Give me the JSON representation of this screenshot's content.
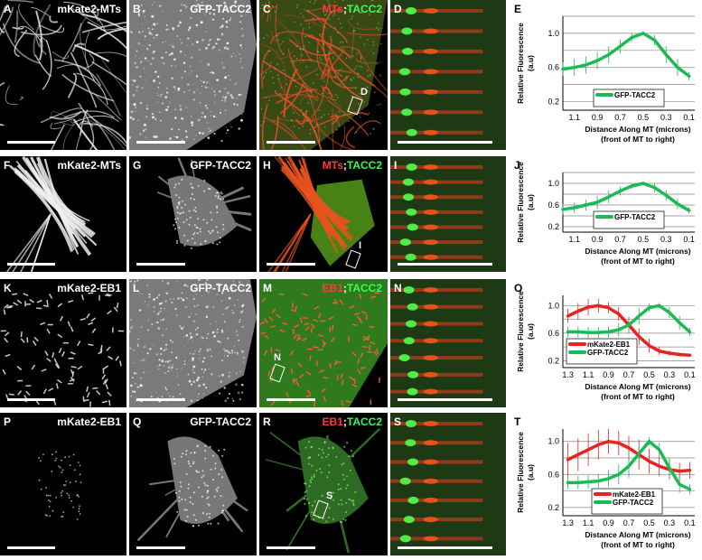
{
  "rows": [
    {
      "panels": [
        {
          "letter": "A",
          "title": [
            {
              "t": "mKate2-MTs",
              "c": "w"
            }
          ],
          "kind": "mts"
        },
        {
          "letter": "B",
          "title": [
            {
              "t": "GFP-TACC2",
              "c": "w"
            }
          ],
          "kind": "diffuse"
        },
        {
          "letter": "C",
          "title": [
            {
              "t": "MTs",
              "c": "r"
            },
            {
              "t": ";",
              "c": "w"
            },
            {
              "t": "TACC2",
              "c": "g"
            }
          ],
          "kind": "merge-mts",
          "box": "D"
        },
        {
          "letter": "D",
          "title": [],
          "kind": "kymo"
        }
      ],
      "chart": "E"
    },
    {
      "panels": [
        {
          "letter": "F",
          "title": [
            {
              "t": "mKate2-MTs",
              "c": "w"
            }
          ],
          "kind": "bundles"
        },
        {
          "letter": "G",
          "title": [
            {
              "t": "GFP-TACC2",
              "c": "w"
            }
          ],
          "kind": "neuron"
        },
        {
          "letter": "H",
          "title": [
            {
              "t": "MTs",
              "c": "r"
            },
            {
              "t": ";",
              "c": "w"
            },
            {
              "t": "TACC2",
              "c": "g"
            }
          ],
          "kind": "merge-bundles",
          "box": "I"
        },
        {
          "letter": "I",
          "title": [],
          "kind": "kymo"
        }
      ],
      "chart": "J"
    },
    {
      "panels": [
        {
          "letter": "K",
          "title": [
            {
              "t": "mKate2-EB1",
              "c": "w"
            }
          ],
          "kind": "comets"
        },
        {
          "letter": "L",
          "title": [
            {
              "t": "GFP-TACC2",
              "c": "w"
            }
          ],
          "kind": "diffuse"
        },
        {
          "letter": "M",
          "title": [
            {
              "t": "EB1",
              "c": "r"
            },
            {
              "t": ";",
              "c": "w"
            },
            {
              "t": "TACC2",
              "c": "g"
            }
          ],
          "kind": "merge-comets",
          "box": "N"
        },
        {
          "letter": "N",
          "title": [],
          "kind": "kymo"
        }
      ],
      "chart": "O"
    },
    {
      "panels": [
        {
          "letter": "P",
          "title": [
            {
              "t": "mKate2-EB1",
              "c": "w"
            }
          ],
          "kind": "sparse"
        },
        {
          "letter": "Q",
          "title": [
            {
              "t": "GFP-TACC2",
              "c": "w"
            }
          ],
          "kind": "neuron"
        },
        {
          "letter": "R",
          "title": [
            {
              "t": "EB1",
              "c": "r"
            },
            {
              "t": ";",
              "c": "w"
            },
            {
              "t": "TACC2",
              "c": "g"
            }
          ],
          "kind": "merge-neuron",
          "box": "S"
        },
        {
          "letter": "S",
          "title": [],
          "kind": "kymo"
        }
      ],
      "chart": "T"
    }
  ],
  "chart_data": [
    {
      "letter": "E",
      "type": "line",
      "ylabel": "Relative Fluorescence\n(a.u)",
      "xlabel": "Distance Along MT (microns)\n(front of MT to right)",
      "xticks": [
        1.1,
        0.9,
        0.7,
        0.5,
        0.3,
        0.1
      ],
      "yticks": [
        0.2,
        0.6,
        1.0
      ],
      "xlim": [
        1.2,
        0.05
      ],
      "ylim": [
        0.1,
        1.2
      ],
      "legend": "bottom-center",
      "series": [
        {
          "name": "GFP-TACC2",
          "color": "#1db954",
          "x": [
            1.2,
            1.1,
            1.0,
            0.9,
            0.8,
            0.7,
            0.6,
            0.5,
            0.4,
            0.3,
            0.2,
            0.1
          ],
          "y": [
            0.58,
            0.6,
            0.63,
            0.68,
            0.75,
            0.85,
            0.95,
            1.0,
            0.92,
            0.75,
            0.6,
            0.5
          ],
          "err": [
            0.08,
            0.1,
            0.1,
            0.1,
            0.1,
            0.08,
            0.05,
            0.02,
            0.06,
            0.1,
            0.1,
            0.05
          ]
        }
      ]
    },
    {
      "letter": "J",
      "type": "line",
      "ylabel": "Relative Fluorescence\n(a.u)",
      "xlabel": "Distance Along MT (microns)\n(front of MT to right)",
      "xticks": [
        1.1,
        0.9,
        0.7,
        0.5,
        0.3,
        0.1
      ],
      "yticks": [
        0.2,
        0.6,
        1.0
      ],
      "xlim": [
        1.2,
        0.05
      ],
      "ylim": [
        0.1,
        1.2
      ],
      "legend": "bottom-center",
      "series": [
        {
          "name": "GFP-TACC2",
          "color": "#1db954",
          "x": [
            1.2,
            1.1,
            1.0,
            0.9,
            0.8,
            0.7,
            0.6,
            0.5,
            0.4,
            0.3,
            0.2,
            0.1
          ],
          "y": [
            0.52,
            0.55,
            0.6,
            0.65,
            0.75,
            0.86,
            0.95,
            1.0,
            0.92,
            0.78,
            0.62,
            0.5
          ],
          "err": [
            0.1,
            0.1,
            0.1,
            0.12,
            0.12,
            0.08,
            0.05,
            0.02,
            0.08,
            0.1,
            0.1,
            0.06
          ]
        }
      ]
    },
    {
      "letter": "O",
      "type": "line",
      "ylabel": "Relative Fluorescence\n(a.u)",
      "xlabel": "Distance Along MT (microns)\n(front of MT to right)",
      "xticks": [
        1.3,
        1.1,
        0.9,
        0.7,
        0.5,
        0.3,
        0.1
      ],
      "yticks": [
        0.2,
        0.6,
        1.0
      ],
      "xlim": [
        1.35,
        0.05
      ],
      "ylim": [
        0.1,
        1.15
      ],
      "legend": "bottom-left",
      "series": [
        {
          "name": "mKate2-EB1",
          "color": "#e8231f",
          "x": [
            1.3,
            1.2,
            1.1,
            1.0,
            0.9,
            0.8,
            0.7,
            0.6,
            0.5,
            0.4,
            0.3,
            0.2,
            0.1
          ],
          "y": [
            0.85,
            0.92,
            0.98,
            1.0,
            0.97,
            0.88,
            0.72,
            0.55,
            0.42,
            0.34,
            0.31,
            0.29,
            0.28
          ],
          "err": [
            0.1,
            0.12,
            0.12,
            0.1,
            0.08,
            0.1,
            0.12,
            0.12,
            0.1,
            0.06,
            0.04,
            0.03,
            0.02
          ]
        },
        {
          "name": "GFP-TACC2",
          "color": "#1db954",
          "x": [
            1.3,
            1.2,
            1.1,
            1.0,
            0.9,
            0.8,
            0.7,
            0.6,
            0.5,
            0.4,
            0.3,
            0.2,
            0.1
          ],
          "y": [
            0.62,
            0.62,
            0.61,
            0.61,
            0.62,
            0.65,
            0.72,
            0.85,
            0.97,
            1.0,
            0.9,
            0.75,
            0.62
          ],
          "err": [
            0.08,
            0.08,
            0.08,
            0.08,
            0.08,
            0.1,
            0.12,
            0.12,
            0.06,
            0.04,
            0.08,
            0.1,
            0.06
          ]
        }
      ]
    },
    {
      "letter": "T",
      "type": "line",
      "ylabel": "Relative Fluorescence\n(a.u)",
      "xlabel": "Distance Along MT (microns)\n(front of MT to right)",
      "xticks": [
        1.3,
        1.1,
        0.9,
        0.7,
        0.5,
        0.3,
        0.1
      ],
      "yticks": [
        0.2,
        0.6,
        1.0
      ],
      "xlim": [
        1.35,
        0.05
      ],
      "ylim": [
        0.1,
        1.15
      ],
      "legend": "bottom-right",
      "series": [
        {
          "name": "mKate2-EB1",
          "color": "#e8231f",
          "x": [
            1.3,
            1.2,
            1.1,
            1.0,
            0.9,
            0.8,
            0.7,
            0.6,
            0.5,
            0.4,
            0.3,
            0.2,
            0.1
          ],
          "y": [
            0.78,
            0.84,
            0.9,
            0.96,
            1.0,
            0.98,
            0.92,
            0.84,
            0.76,
            0.7,
            0.66,
            0.64,
            0.65
          ],
          "err": [
            0.2,
            0.2,
            0.2,
            0.18,
            0.15,
            0.15,
            0.15,
            0.18,
            0.15,
            0.12,
            0.12,
            0.1,
            0.1
          ]
        },
        {
          "name": "GFP-TACC2",
          "color": "#1db954",
          "x": [
            1.3,
            1.2,
            1.1,
            1.0,
            0.9,
            0.8,
            0.7,
            0.6,
            0.5,
            0.4,
            0.3,
            0.2,
            0.1
          ],
          "y": [
            0.5,
            0.5,
            0.51,
            0.52,
            0.55,
            0.6,
            0.7,
            0.85,
            1.0,
            0.9,
            0.68,
            0.48,
            0.42
          ],
          "err": [
            0.08,
            0.08,
            0.08,
            0.08,
            0.1,
            0.12,
            0.14,
            0.12,
            0.05,
            0.08,
            0.12,
            0.1,
            0.06
          ]
        }
      ]
    }
  ]
}
